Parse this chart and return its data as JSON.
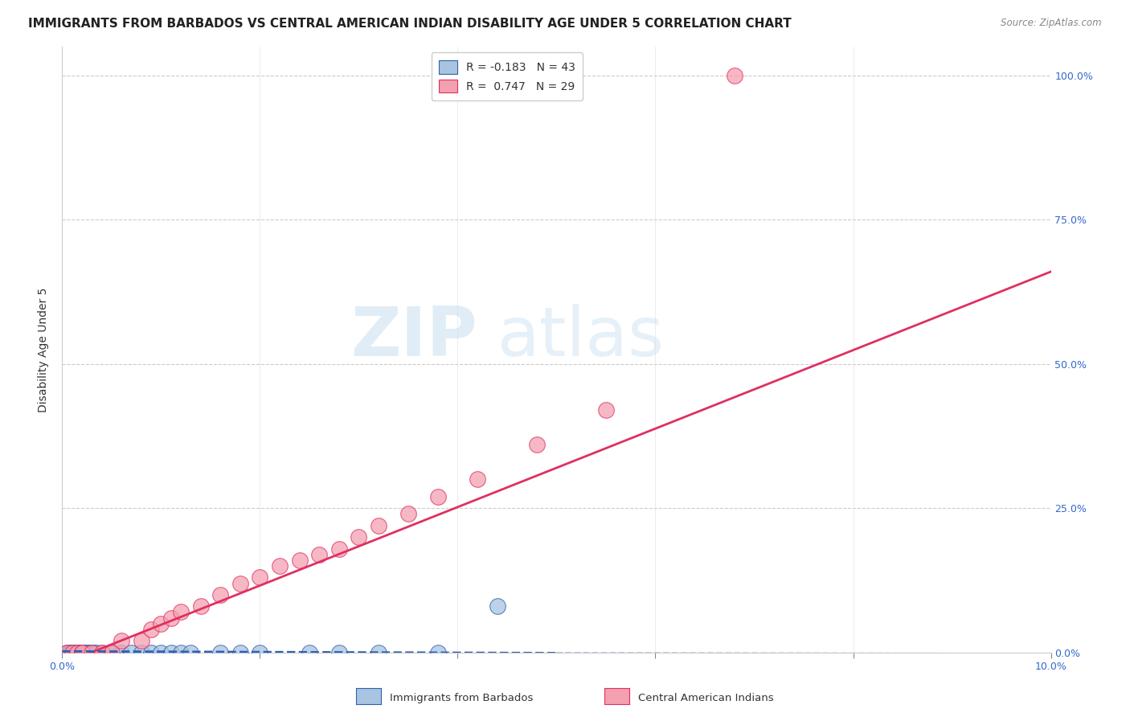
{
  "title": "IMMIGRANTS FROM BARBADOS VS CENTRAL AMERICAN INDIAN DISABILITY AGE UNDER 5 CORRELATION CHART",
  "source": "Source: ZipAtlas.com",
  "ylabel_label": "Disability Age Under 5",
  "x_min": 0.0,
  "x_max": 0.1,
  "y_min": 0.0,
  "y_max": 1.05,
  "x_ticks": [
    0.0,
    0.02,
    0.04,
    0.06,
    0.08,
    0.1
  ],
  "x_tick_labels": [
    "0.0%",
    "",
    "",
    "",
    "",
    "10.0%"
  ],
  "y_tick_labels_right": [
    "0.0%",
    "25.0%",
    "50.0%",
    "75.0%",
    "100.0%"
  ],
  "y_ticks_right": [
    0.0,
    0.25,
    0.5,
    0.75,
    1.0
  ],
  "color_blue": "#a8c4e0",
  "color_pink": "#f4a0b0",
  "color_blue_line": "#3060b0",
  "color_pink_line": "#e03060",
  "legend_label1": "Immigrants from Barbados",
  "legend_label2": "Central American Indians",
  "watermark_zip": "ZIP",
  "watermark_atlas": "atlas",
  "barbados_x": [
    0.0005,
    0.0007,
    0.0008,
    0.001,
    0.001,
    0.001,
    0.0012,
    0.0013,
    0.0014,
    0.0015,
    0.0015,
    0.0016,
    0.0017,
    0.0018,
    0.002,
    0.002,
    0.002,
    0.0022,
    0.0023,
    0.0025,
    0.0027,
    0.003,
    0.003,
    0.0032,
    0.0035,
    0.004,
    0.005,
    0.006,
    0.007,
    0.008,
    0.009,
    0.01,
    0.011,
    0.012,
    0.013,
    0.016,
    0.018,
    0.02,
    0.025,
    0.028,
    0.032,
    0.038,
    0.044
  ],
  "barbados_y": [
    0.0,
    0.0,
    0.0,
    0.0,
    0.0,
    0.0,
    0.0,
    0.0,
    0.0,
    0.0,
    0.0,
    0.0,
    0.0,
    0.0,
    0.0,
    0.0,
    0.0,
    0.0,
    0.0,
    0.0,
    0.0,
    0.0,
    0.0,
    0.0,
    0.0,
    0.0,
    0.0,
    0.0,
    0.0,
    0.0,
    0.0,
    0.0,
    0.0,
    0.0,
    0.0,
    0.0,
    0.0,
    0.0,
    0.0,
    0.0,
    0.0,
    0.0,
    0.08
  ],
  "indian_x": [
    0.0005,
    0.001,
    0.0015,
    0.002,
    0.002,
    0.003,
    0.004,
    0.005,
    0.006,
    0.008,
    0.009,
    0.01,
    0.011,
    0.012,
    0.014,
    0.016,
    0.018,
    0.02,
    0.022,
    0.024,
    0.026,
    0.028,
    0.03,
    0.032,
    0.035,
    0.038,
    0.042,
    0.048,
    0.055
  ],
  "indian_y": [
    0.0,
    0.0,
    0.0,
    0.0,
    0.0,
    0.0,
    0.0,
    0.0,
    0.02,
    0.02,
    0.04,
    0.05,
    0.06,
    0.07,
    0.08,
    0.1,
    0.12,
    0.13,
    0.15,
    0.16,
    0.17,
    0.18,
    0.2,
    0.22,
    0.24,
    0.27,
    0.3,
    0.36,
    0.42
  ],
  "indian_outlier_x": [
    0.068
  ],
  "indian_outlier_y": [
    1.0
  ],
  "pink_line_x0": 0.0,
  "pink_line_x1": 0.1,
  "pink_line_y0": -0.02,
  "pink_line_y1": 0.66,
  "blue_line_x0": 0.0,
  "blue_line_x1": 0.05,
  "blue_line_y0": 0.002,
  "blue_line_y1": -0.001,
  "title_fontsize": 11,
  "axis_fontsize": 9,
  "legend_fontsize": 10
}
